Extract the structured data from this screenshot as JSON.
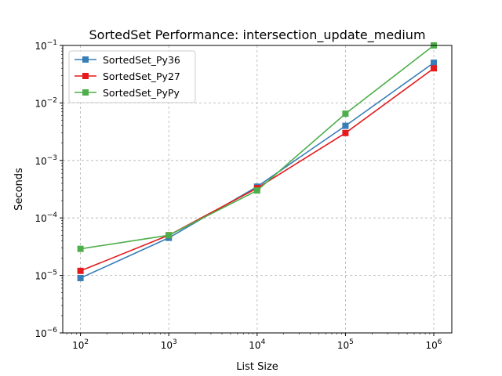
{
  "chart_data": {
    "type": "line",
    "title": "SortedSet Performance: intersection_update_medium",
    "xlabel": "List Size",
    "ylabel": "Seconds",
    "xscale": "log",
    "yscale": "log",
    "xlim": [
      63,
      1600000
    ],
    "ylim": [
      1e-06,
      0.1
    ],
    "grid": true,
    "legend_position": "upper left",
    "x": [
      100,
      1000,
      10000,
      100000,
      1000000
    ],
    "x_ticks": [
      {
        "value": 100,
        "base": "10",
        "exp": "2"
      },
      {
        "value": 1000,
        "base": "10",
        "exp": "3"
      },
      {
        "value": 10000,
        "base": "10",
        "exp": "4"
      },
      {
        "value": 100000,
        "base": "10",
        "exp": "5"
      },
      {
        "value": 1000000,
        "base": "10",
        "exp": "6"
      }
    ],
    "y_ticks": [
      {
        "value": 1e-06,
        "base": "10",
        "exp": "−6"
      },
      {
        "value": 1e-05,
        "base": "10",
        "exp": "−5"
      },
      {
        "value": 0.0001,
        "base": "10",
        "exp": "−4"
      },
      {
        "value": 0.001,
        "base": "10",
        "exp": "−3"
      },
      {
        "value": 0.01,
        "base": "10",
        "exp": "−2"
      },
      {
        "value": 0.1,
        "base": "10",
        "exp": "−1"
      }
    ],
    "series": [
      {
        "name": "SortedSet_Py36",
        "color": "#377eb8",
        "values": [
          9e-06,
          4.5e-05,
          0.00035,
          0.004,
          0.05
        ]
      },
      {
        "name": "SortedSet_Py27",
        "color": "#e41a1c",
        "values": [
          1.2e-05,
          5e-05,
          0.00033,
          0.003,
          0.04
        ]
      },
      {
        "name": "SortedSet_PyPy",
        "color": "#4daf4a",
        "values": [
          2.9e-05,
          5e-05,
          0.0003,
          0.0065,
          0.1
        ]
      }
    ]
  }
}
